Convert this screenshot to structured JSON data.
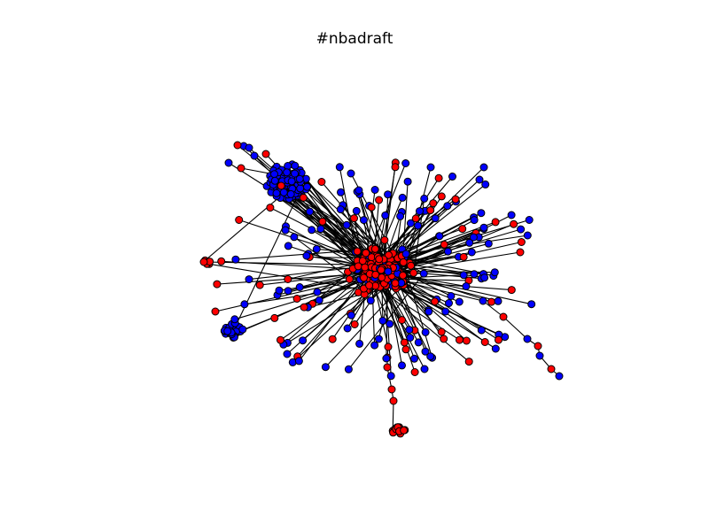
{
  "figure": {
    "title": "#nbadraft"
  },
  "legend_colors": {
    "group_a": "#0000ff",
    "group_b": "#ff0000",
    "edge": "#000000",
    "node_outline": "#000000",
    "background": "#ffffff"
  },
  "network": {
    "type": "node-link graph",
    "node_groups": [
      "blue",
      "red"
    ],
    "clusters": [
      {
        "name": "dense-blue-cluster",
        "color": "blue"
      },
      {
        "name": "core-mixed-cluster",
        "color": "mixed"
      },
      {
        "name": "left-blue-cluster",
        "color": "blue"
      },
      {
        "name": "bottom-red-cluster",
        "color": "red"
      }
    ]
  }
}
